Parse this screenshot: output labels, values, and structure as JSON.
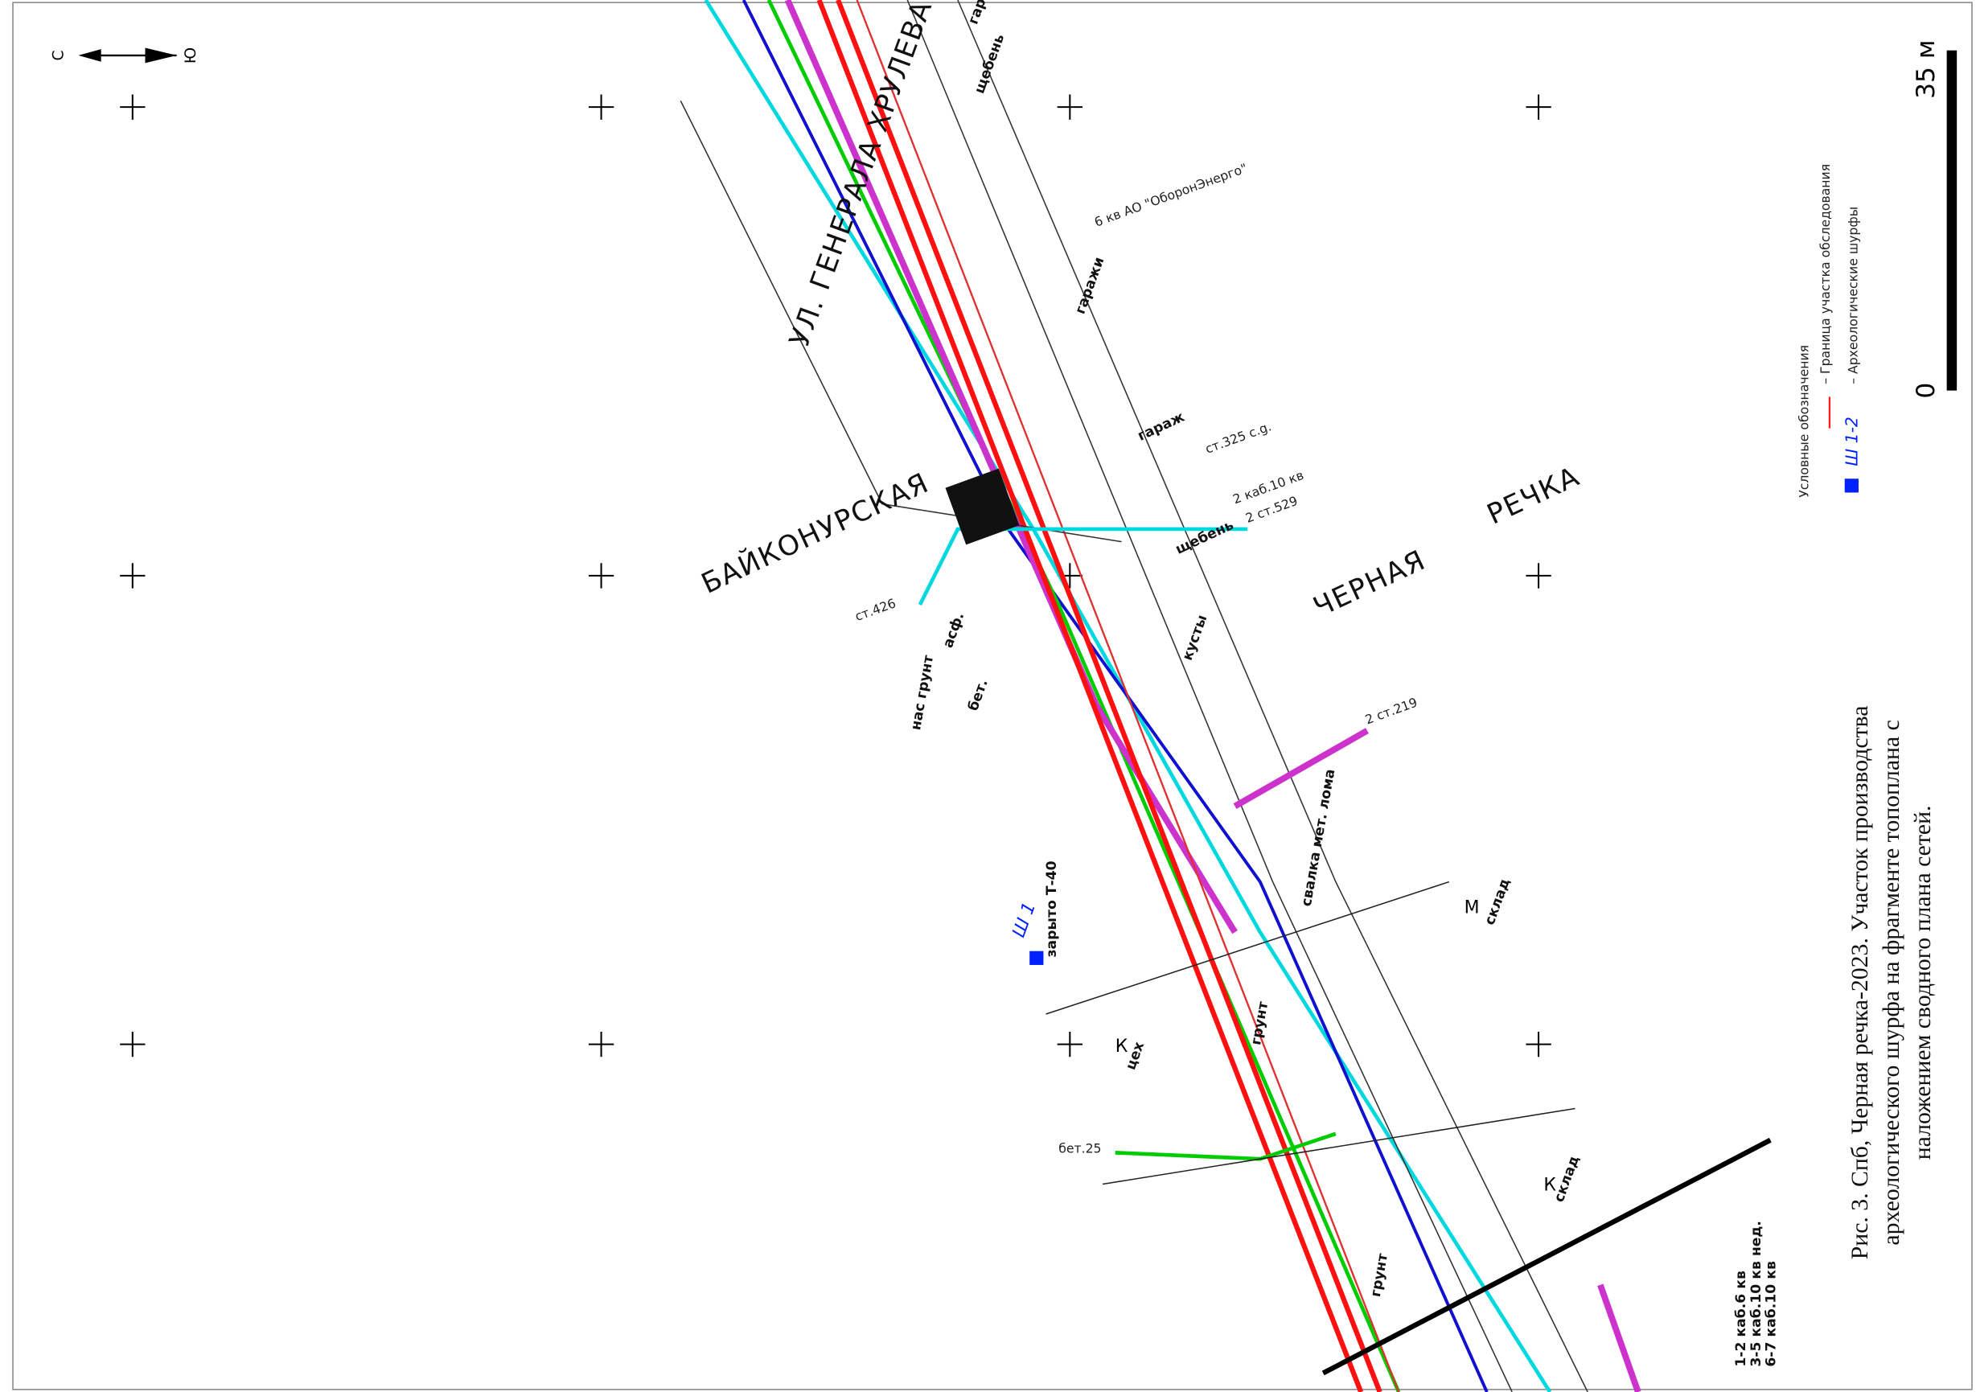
{
  "map": {
    "north_arrow": {
      "north": "С",
      "south": "Ю"
    },
    "scale": {
      "zero": "0",
      "max": "35 м"
    },
    "legend": {
      "title": "Условные обозначения",
      "items": [
        "– Граница участка обследования",
        "– Археологические шурфы"
      ],
      "pit_label": "Ш 1-2"
    },
    "caption": [
      "Рис. 3. Спб, Черная речка-2023. Участок производства",
      "археологического шурфа на фрагменте топоплана с",
      "наложением сводного плана сетей."
    ],
    "streets": [
      "БАЙКОНУРСКАЯ",
      "ЧЕРНАЯ",
      "РЕЧКА",
      "УЛ. ГЕНЕРАЛА ХРУЛЕВА"
    ],
    "pits": [
      "Ш 1"
    ],
    "labels": [
      "гаражи",
      "гаражи",
      "гараж",
      "щебень",
      "щебень",
      "асф.",
      "бет.",
      "нас грунт",
      "грунт",
      "грунт",
      "кусты",
      "свалка мет. лома",
      "К",
      "цех",
      "М",
      "склад",
      "К",
      "склад",
      "6 кв АО \"ОборонЭнерго\"",
      "ст.325 с.g.",
      "ст.426",
      "2 ст.219",
      "2 каб.10 кв",
      "2 ст.529",
      "1-2 каб.6 кв",
      "3-5 каб.10 кв нед.",
      "6-7 каб.10 кв",
      "бет.25",
      "зарыто Т-40"
    ]
  }
}
